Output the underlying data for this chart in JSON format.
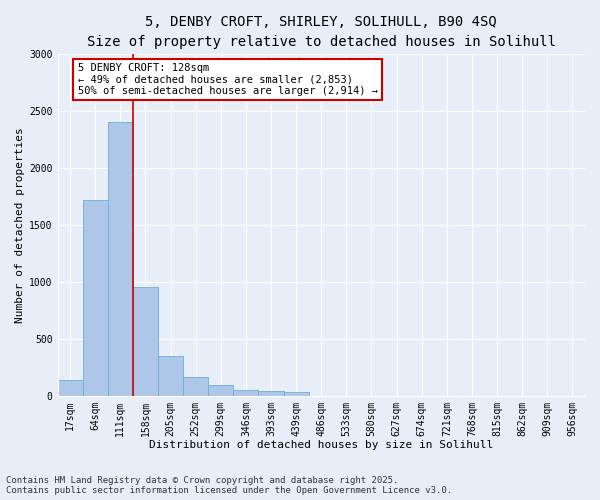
{
  "title_line1": "5, DENBY CROFT, SHIRLEY, SOLIHULL, B90 4SQ",
  "title_line2": "Size of property relative to detached houses in Solihull",
  "xlabel": "Distribution of detached houses by size in Solihull",
  "ylabel": "Number of detached properties",
  "bar_labels": [
    "17sqm",
    "64sqm",
    "111sqm",
    "158sqm",
    "205sqm",
    "252sqm",
    "299sqm",
    "346sqm",
    "393sqm",
    "439sqm",
    "486sqm",
    "533sqm",
    "580sqm",
    "627sqm",
    "674sqm",
    "721sqm",
    "768sqm",
    "815sqm",
    "862sqm",
    "909sqm",
    "956sqm"
  ],
  "bar_values": [
    140,
    1720,
    2400,
    950,
    350,
    160,
    90,
    50,
    40,
    30,
    0,
    0,
    0,
    0,
    0,
    0,
    0,
    0,
    0,
    0,
    0
  ],
  "bar_color": "#aec6e8",
  "bar_edgecolor": "#6baed6",
  "vline_color": "#cc0000",
  "annotation_text": "5 DENBY CROFT: 128sqm\n← 49% of detached houses are smaller (2,853)\n50% of semi-detached houses are larger (2,914) →",
  "annotation_box_color": "#cc0000",
  "ylim": [
    0,
    3000
  ],
  "yticks": [
    0,
    500,
    1000,
    1500,
    2000,
    2500,
    3000
  ],
  "bg_color": "#e8eef8",
  "plot_bg": "#e8eef8",
  "footer_line1": "Contains HM Land Registry data © Crown copyright and database right 2025.",
  "footer_line2": "Contains public sector information licensed under the Open Government Licence v3.0.",
  "title_fontsize": 10,
  "subtitle_fontsize": 9,
  "axis_label_fontsize": 8,
  "tick_fontsize": 7,
  "annotation_fontsize": 7.5,
  "footer_fontsize": 6.5
}
